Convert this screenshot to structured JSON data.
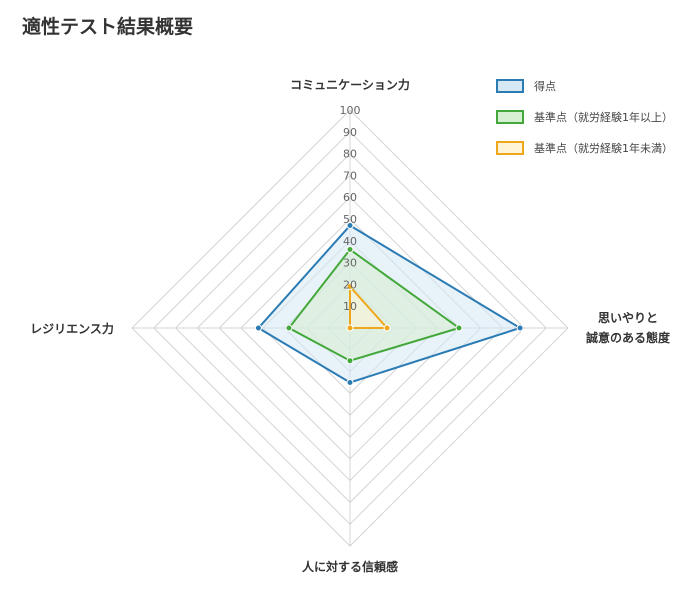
{
  "title": "適性テスト結果概要",
  "chart_data": {
    "type": "radar",
    "axes": [
      "コミュニケーション力",
      "思いやりと\n誠意のある態度",
      "人に対する信頼感",
      "レジリエンス力"
    ],
    "r_ticks": [
      10,
      20,
      30,
      40,
      50,
      60,
      70,
      80,
      90,
      100
    ],
    "r_range": [
      0,
      100
    ],
    "grid": true,
    "legend_position": "top-right",
    "series": [
      {
        "name": "得点",
        "values": [
          47,
          78,
          25,
          42
        ],
        "color": "#2b7bb4",
        "fill": "#d6e8f4"
      },
      {
        "name": "基準点（就労経験1年以上）",
        "values": [
          36,
          50,
          15,
          28
        ],
        "color": "#43a83a",
        "fill": "#d7efd2"
      },
      {
        "name": "基準点（就労経験1年未満）",
        "values": [
          19,
          17,
          0,
          0
        ],
        "color": "#eea71c",
        "fill": "#fff4d6"
      }
    ]
  }
}
